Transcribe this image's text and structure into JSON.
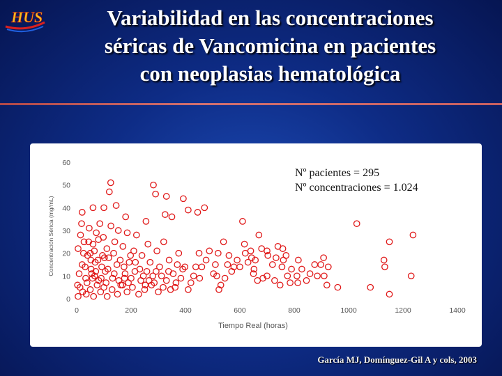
{
  "slide": {
    "title_lines": [
      "Variabilidad en las concentraciones",
      "séricas de Vancomicina en pacientes",
      "con neoplasias hematológica"
    ],
    "logo_text": "HUS",
    "annotation": [
      "Nº pacientes = 295",
      "Nº concentraciones = 1.024"
    ],
    "citation": "García MJ, Domínguez-Gil A y cols, 2003",
    "colors": {
      "background": "#0e2c86",
      "title": "#ffffff",
      "marker": "#e01818",
      "rule": "#c05858"
    }
  },
  "chart_data": {
    "type": "scatter",
    "xlabel": "Tiempo Real (horas)",
    "ylabel": "Concentración Sérica (mg/mL)",
    "xlim": [
      0,
      1400
    ],
    "ylim": [
      0,
      60
    ],
    "xticks": [
      0,
      200,
      400,
      600,
      800,
      1000,
      1200,
      1400
    ],
    "yticks": [
      0,
      10,
      20,
      30,
      40,
      50,
      60
    ],
    "grid": false,
    "series": [
      {
        "values": [
          [
            125,
            51
          ],
          [
            120,
            47
          ],
          [
            282,
            50
          ],
          [
            290,
            46
          ],
          [
            20,
            38
          ],
          [
            60,
            40
          ],
          [
            100,
            40
          ],
          [
            145,
            41
          ],
          [
            180,
            36
          ],
          [
            330,
            45
          ],
          [
            392,
            44
          ],
          [
            470,
            40
          ],
          [
            445,
            38
          ],
          [
            410,
            39
          ],
          [
            325,
            37
          ],
          [
            350,
            36
          ],
          [
            255,
            34
          ],
          [
            610,
            34
          ],
          [
            670,
            28
          ],
          [
            617,
            24
          ],
          [
            740,
            23
          ],
          [
            758,
            22
          ],
          [
            770,
            19
          ],
          [
            680,
            22
          ],
          [
            700,
            21
          ],
          [
            703,
            19
          ],
          [
            733,
            18
          ],
          [
            630,
            16
          ],
          [
            657,
            17
          ],
          [
            760,
            17
          ],
          [
            815,
            17
          ],
          [
            828,
            13
          ],
          [
            875,
            15
          ],
          [
            858,
            11
          ],
          [
            810,
            10
          ],
          [
            813,
            7
          ],
          [
            785,
            7
          ],
          [
            748,
            6
          ],
          [
            728,
            8
          ],
          [
            700,
            10
          ],
          [
            685,
            9
          ],
          [
            665,
            8
          ],
          [
            650,
            11
          ],
          [
            652,
            13
          ],
          [
            643,
            18
          ],
          [
            640,
            21
          ],
          [
            620,
            20
          ],
          [
            600,
            14
          ],
          [
            578,
            14
          ],
          [
            560,
            19
          ],
          [
            570,
            12
          ],
          [
            545,
            9
          ],
          [
            530,
            6
          ],
          [
            515,
            10
          ],
          [
            510,
            15
          ],
          [
            523,
            4
          ],
          [
            503,
            11
          ],
          [
            488,
            21
          ],
          [
            476,
            17
          ],
          [
            460,
            14
          ],
          [
            452,
            9
          ],
          [
            438,
            14
          ],
          [
            430,
            10
          ],
          [
            420,
            7
          ],
          [
            410,
            4
          ],
          [
            390,
            13
          ],
          [
            375,
            20
          ],
          [
            370,
            15
          ],
          [
            365,
            7
          ],
          [
            355,
            11
          ],
          [
            345,
            4
          ],
          [
            340,
            17
          ],
          [
            330,
            8
          ],
          [
            320,
            25
          ],
          [
            305,
            14
          ],
          [
            295,
            21
          ],
          [
            280,
            10
          ],
          [
            270,
            16
          ],
          [
            262,
            24
          ],
          [
            252,
            6
          ],
          [
            240,
            19
          ],
          [
            232,
            13
          ],
          [
            220,
            28
          ],
          [
            210,
            21
          ],
          [
            200,
            9
          ],
          [
            193,
            16
          ],
          [
            186,
            29
          ],
          [
            178,
            11
          ],
          [
            170,
            23
          ],
          [
            162,
            6
          ],
          [
            153,
            30
          ],
          [
            148,
            15
          ],
          [
            140,
            25
          ],
          [
            132,
            9
          ],
          [
            126,
            32
          ],
          [
            118,
            18
          ],
          [
            111,
            22
          ],
          [
            105,
            12
          ],
          [
            98,
            27
          ],
          [
            92,
            14
          ],
          [
            85,
            33
          ],
          [
            78,
            17
          ],
          [
            72,
            29
          ],
          [
            66,
            10
          ],
          [
            60,
            24
          ],
          [
            53,
            13
          ],
          [
            46,
            31
          ],
          [
            40,
            19
          ],
          [
            33,
            9
          ],
          [
            27,
            25
          ],
          [
            20,
            15
          ],
          [
            14,
            28
          ],
          [
            9,
            11
          ],
          [
            5,
            22
          ],
          [
            3,
            6
          ],
          [
            5,
            1
          ],
          [
            12,
            5
          ],
          [
            22,
            3
          ],
          [
            35,
            2
          ],
          [
            50,
            4
          ],
          [
            62,
            1
          ],
          [
            75,
            6
          ],
          [
            88,
            3
          ],
          [
            100,
            5
          ],
          [
            112,
            1
          ],
          [
            130,
            4
          ],
          [
            150,
            2
          ],
          [
            168,
            6
          ],
          [
            185,
            3
          ],
          [
            205,
            5
          ],
          [
            228,
            2
          ],
          [
            250,
            4
          ],
          [
            275,
            6
          ],
          [
            300,
            3
          ],
          [
            318,
            5
          ],
          [
            50,
            20
          ],
          [
            55,
            11
          ],
          [
            68,
            16
          ],
          [
            81,
            8
          ],
          [
            95,
            19
          ],
          [
            108,
            7
          ],
          [
            115,
            13
          ],
          [
            136,
            20
          ],
          [
            155,
            8
          ],
          [
            174,
            14
          ],
          [
            190,
            7
          ],
          [
            214,
            12
          ],
          [
            236,
            8
          ],
          [
            258,
            12
          ],
          [
            285,
            7
          ],
          [
            312,
            10
          ],
          [
            338,
            12
          ],
          [
            362,
            5
          ],
          [
            383,
            9
          ],
          [
            398,
            14
          ],
          [
            450,
            20
          ],
          [
            540,
            25
          ],
          [
            590,
            17
          ],
          [
            555,
            15
          ],
          [
            520,
            20
          ],
          [
            18,
            33
          ],
          [
            25,
            20
          ],
          [
            31,
            14
          ],
          [
            38,
            7
          ],
          [
            44,
            25
          ],
          [
            52,
            17
          ],
          [
            58,
            9
          ],
          [
            65,
            21
          ],
          [
            70,
            12
          ],
          [
            80,
            26
          ],
          [
            90,
            9
          ],
          [
            102,
            18
          ],
          [
            138,
            11
          ],
          [
            160,
            17
          ],
          [
            176,
            9
          ],
          [
            198,
            19
          ],
          [
            216,
            16
          ],
          [
            245,
            10
          ],
          [
            266,
            8
          ],
          [
            292,
            12
          ],
          [
            910,
            10
          ],
          [
            920,
            6
          ],
          [
            908,
            18
          ],
          [
            898,
            15
          ],
          [
            960,
            5
          ],
          [
            1080,
            5
          ],
          [
            1130,
            17
          ],
          [
            1133,
            14
          ],
          [
            1150,
            2
          ],
          [
            1230,
            10
          ],
          [
            1237,
            28
          ],
          [
            1030,
            33
          ],
          [
            1150,
            25
          ],
          [
            925,
            14
          ],
          [
            885,
            10
          ],
          [
            845,
            8
          ],
          [
            790,
            13
          ],
          [
            775,
            10
          ],
          [
            755,
            14
          ],
          [
            720,
            15
          ]
        ]
      }
    ]
  }
}
